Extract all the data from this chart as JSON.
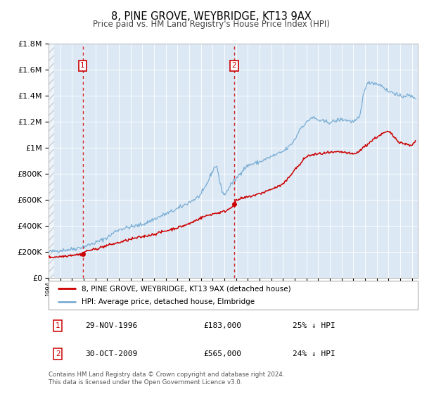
{
  "title": "8, PINE GROVE, WEYBRIDGE, KT13 9AX",
  "subtitle": "Price paid vs. HM Land Registry's House Price Index (HPI)",
  "legend_label1": "8, PINE GROVE, WEYBRIDGE, KT13 9AX (detached house)",
  "legend_label2": "HPI: Average price, detached house, Elmbridge",
  "annotation1_date": "29-NOV-1996",
  "annotation1_price": "£183,000",
  "annotation1_hpi": "25% ↓ HPI",
  "annotation2_date": "30-OCT-2009",
  "annotation2_price": "£565,000",
  "annotation2_hpi": "24% ↓ HPI",
  "footer1": "Contains HM Land Registry data © Crown copyright and database right 2024.",
  "footer2": "This data is licensed under the Open Government Licence v3.0.",
  "sale1_year": 1996.91,
  "sale1_value": 183000,
  "sale2_year": 2009.83,
  "sale2_value": 565000,
  "red_color": "#cc0000",
  "blue_color": "#7aadd4",
  "bg_color": "#dce9f5",
  "plot_bg": "#ffffff",
  "xmin": 1994,
  "xmax": 2025.5,
  "ymin": 0,
  "ymax": 1800000
}
